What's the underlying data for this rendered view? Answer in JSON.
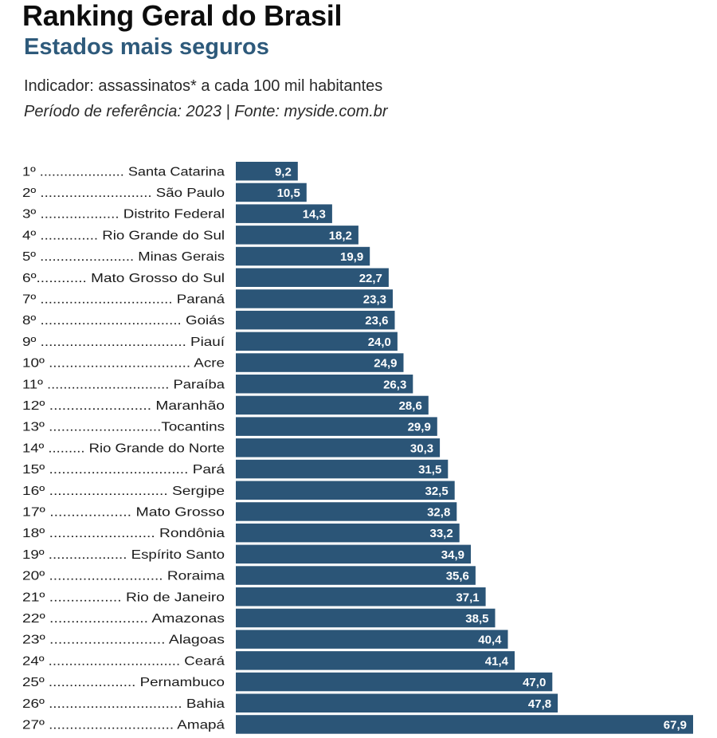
{
  "header": {
    "title": "Ranking Geral do Brasil",
    "subtitle": "Estados mais seguros",
    "indicator": "Indicador: assassinatos* a cada 100 mil habitantes",
    "period": "Período de referência: 2023 | Fonte: myside.com.br"
  },
  "colors": {
    "bar": "#2b5577",
    "subtitle": "#2e5a7b"
  },
  "chart_data": {
    "type": "bar",
    "orientation": "horizontal",
    "title": "Ranking Geral do Brasil",
    "subtitle": "Estados mais seguros",
    "xlabel": "",
    "ylabel": "",
    "xlim": [
      0,
      67.9
    ],
    "grid": false,
    "legend": "none",
    "rows": [
      {
        "label": "1º ..................... Santa Catarina",
        "value": 9.2,
        "value_label": "9,2"
      },
      {
        "label": "2º ........................... São Paulo",
        "value": 10.5,
        "value_label": "10,5"
      },
      {
        "label": "3º ................... Distrito Federal",
        "value": 14.3,
        "value_label": "14,3"
      },
      {
        "label": "4º .............. Rio Grande do Sul",
        "value": 18.2,
        "value_label": "18,2"
      },
      {
        "label": "5º ....................... Minas Gerais",
        "value": 19.9,
        "value_label": "19,9"
      },
      {
        "label": "6º............ Mato Grosso do Sul",
        "value": 22.7,
        "value_label": "22,7"
      },
      {
        "label": "7º ................................ Paraná",
        "value": 23.3,
        "value_label": "23,3"
      },
      {
        "label": "8º .................................. Goiás",
        "value": 23.6,
        "value_label": "23,6"
      },
      {
        "label": "9º ................................... Piauí",
        "value": 24.0,
        "value_label": "24,0"
      },
      {
        "label": "10º .................................. Acre",
        "value": 24.9,
        "value_label": "24,9"
      },
      {
        "label": "11º .............................. Paraíba",
        "value": 26.3,
        "value_label": "26,3"
      },
      {
        "label": "12º ........................ Maranhão",
        "value": 28.6,
        "value_label": "28,6"
      },
      {
        "label": "13º ...........................Tocantins",
        "value": 29.9,
        "value_label": "29,9"
      },
      {
        "label": "14º ......... Rio Grande do Norte",
        "value": 30.3,
        "value_label": "30,3"
      },
      {
        "label": "15º ................................. Pará",
        "value": 31.5,
        "value_label": "31,5"
      },
      {
        "label": "16º ............................ Sergipe",
        "value": 32.5,
        "value_label": "32,5"
      },
      {
        "label": "17º ................... Mato Grosso",
        "value": 32.8,
        "value_label": "32,8"
      },
      {
        "label": "18º ......................... Rondônia",
        "value": 33.2,
        "value_label": "33,2"
      },
      {
        "label": "19º ................... Espírito Santo",
        "value": 34.9,
        "value_label": "34,9"
      },
      {
        "label": "20º ........................... Roraima",
        "value": 35.6,
        "value_label": "35,6"
      },
      {
        "label": "21º ................. Rio de Janeiro",
        "value": 37.1,
        "value_label": "37,1"
      },
      {
        "label": "22º ....................... Amazonas",
        "value": 38.5,
        "value_label": "38,5"
      },
      {
        "label": "23º ........................... Alagoas",
        "value": 40.4,
        "value_label": "40,4"
      },
      {
        "label": "24º ................................ Ceará",
        "value": 41.4,
        "value_label": "41,4"
      },
      {
        "label": "25º ..................... Pernambuco",
        "value": 47.0,
        "value_label": "47,0"
      },
      {
        "label": "26º ................................ Bahia",
        "value": 47.8,
        "value_label": "47,8"
      },
      {
        "label": "27º .............................. Amapá",
        "value": 67.9,
        "value_label": "67,9"
      }
    ]
  }
}
